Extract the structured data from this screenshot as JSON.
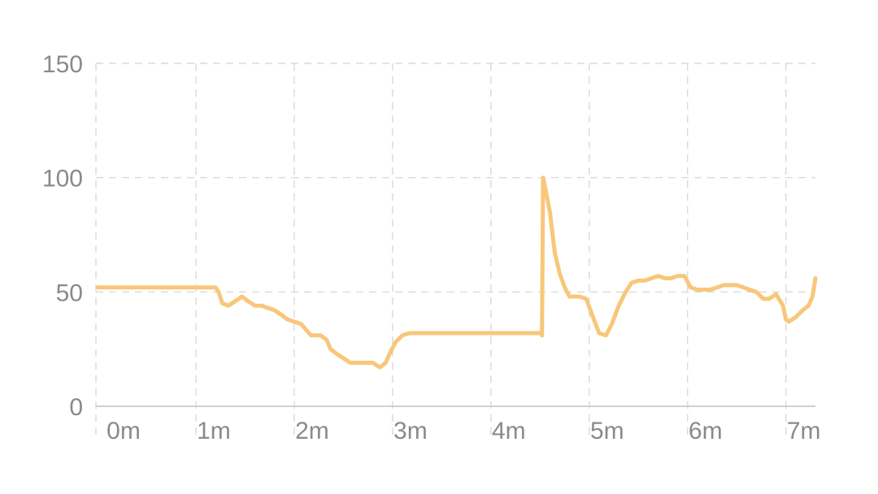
{
  "chart_data": {
    "type": "line",
    "title": "",
    "xlabel": "",
    "ylabel": "",
    "xlim": [
      -0.0167,
      7.3
    ],
    "ylim": [
      0,
      150
    ],
    "grid": true,
    "x_ticks": [
      {
        "value": 0,
        "label": "0m"
      },
      {
        "value": 1,
        "label": "1m"
      },
      {
        "value": 2,
        "label": "2m"
      },
      {
        "value": 3,
        "label": "3m"
      },
      {
        "value": 4,
        "label": "4m"
      },
      {
        "value": 5,
        "label": "5m"
      },
      {
        "value": 6,
        "label": "6m"
      },
      {
        "value": 7,
        "label": "7m"
      }
    ],
    "y_ticks": [
      {
        "value": 0,
        "label": "0"
      },
      {
        "value": 50,
        "label": "50"
      },
      {
        "value": 100,
        "label": "100"
      },
      {
        "value": 150,
        "label": "150"
      }
    ],
    "series": [
      {
        "color": "#F8C77A",
        "x": [
          0,
          0.5,
          1.0,
          1.2,
          1.23,
          1.27,
          1.33,
          1.4,
          1.47,
          1.53,
          1.6,
          1.67,
          1.73,
          1.8,
          1.87,
          1.93,
          2.0,
          2.07,
          2.13,
          2.17,
          2.2,
          2.27,
          2.33,
          2.37,
          2.43,
          2.5,
          2.57,
          2.63,
          2.7,
          2.8,
          2.87,
          2.93,
          2.97,
          3.03,
          3.1,
          3.17,
          3.23,
          3.3,
          3.5,
          4.0,
          4.5,
          4.52,
          4.53,
          4.55,
          4.6,
          4.65,
          4.7,
          4.75,
          4.8,
          4.9,
          4.97,
          5.03,
          5.1,
          5.17,
          5.23,
          5.3,
          5.37,
          5.43,
          5.5,
          5.57,
          5.63,
          5.7,
          5.77,
          5.83,
          5.9,
          5.97,
          6.03,
          6.1,
          6.17,
          6.23,
          6.3,
          6.37,
          6.43,
          6.5,
          6.57,
          6.63,
          6.7,
          6.77,
          6.83,
          6.9,
          6.97,
          7.0,
          7.03,
          7.1,
          7.17,
          7.23,
          7.27,
          7.3
        ],
        "values": [
          52,
          52,
          52,
          52,
          50,
          45,
          44,
          46,
          48,
          46,
          44,
          44,
          43,
          42,
          40,
          38,
          37,
          36,
          33,
          31,
          31,
          31,
          29,
          25,
          23,
          21,
          19,
          19,
          19,
          19,
          17,
          19,
          23,
          28,
          31,
          32,
          32,
          32,
          32,
          32,
          32,
          31,
          100,
          96,
          85,
          67,
          58,
          52,
          48,
          48,
          47,
          40,
          32,
          31,
          36,
          44,
          50,
          54,
          55,
          55,
          56,
          57,
          56,
          56,
          57,
          57,
          52,
          51,
          51,
          51,
          52,
          53,
          53,
          53,
          52,
          51,
          50,
          47,
          47,
          49,
          44,
          38,
          37,
          39,
          42,
          44,
          48,
          56
        ]
      }
    ]
  }
}
